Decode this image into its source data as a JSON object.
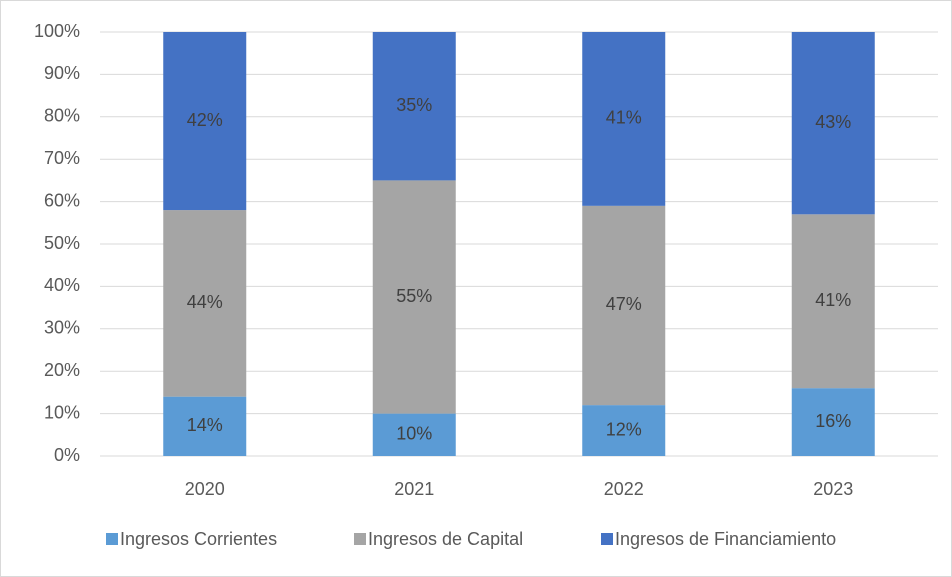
{
  "chart_data": {
    "type": "stacked_bar",
    "categories": [
      "2020",
      "2021",
      "2022",
      "2023"
    ],
    "series": [
      {
        "name": "Ingresos Corrientes",
        "color": "#5b9bd5",
        "values": [
          14,
          10,
          12,
          16
        ],
        "value_labels": [
          "14%",
          "10%",
          "12%",
          "16%"
        ]
      },
      {
        "name": "Ingresos de Capital",
        "color": "#a5a5a5",
        "values": [
          44,
          55,
          47,
          41
        ],
        "value_labels": [
          "44%",
          "55%",
          "47%",
          "41%"
        ]
      },
      {
        "name": "Ingresos de Financiamiento",
        "color": "#4472c4",
        "values": [
          42,
          35,
          41,
          43
        ],
        "value_labels": [
          "42%",
          "35%",
          "41%",
          "43%"
        ]
      }
    ],
    "ylim": [
      0,
      100
    ],
    "yticks": [
      {
        "value": 0,
        "label": "0%"
      },
      {
        "value": 10,
        "label": "10%"
      },
      {
        "value": 20,
        "label": "20%"
      },
      {
        "value": 30,
        "label": "30%"
      },
      {
        "value": 40,
        "label": "40%"
      },
      {
        "value": 50,
        "label": "50%"
      },
      {
        "value": 60,
        "label": "60%"
      },
      {
        "value": 70,
        "label": "70%"
      },
      {
        "value": 80,
        "label": "80%"
      },
      {
        "value": 90,
        "label": "90%"
      },
      {
        "value": 100,
        "label": "100%"
      }
    ],
    "grid": true,
    "legend": "bottom"
  }
}
